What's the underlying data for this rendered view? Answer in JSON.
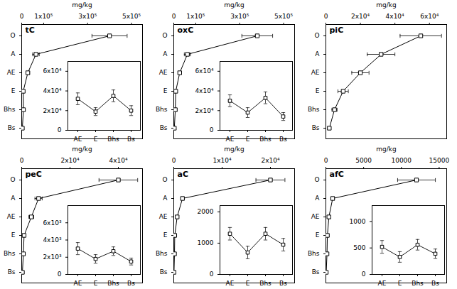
{
  "chart_data": [
    {
      "type": "line",
      "title": "tC",
      "xlabel": "mg/kg",
      "orientation": "horizontal",
      "color": "black",
      "marker": "square",
      "categories": [
        "O",
        "A",
        "AE",
        "E",
        "Bhs",
        "Bs"
      ],
      "values": [
        400000,
        65000,
        28000,
        7000,
        8000,
        3000
      ],
      "errors": [
        80000,
        15000,
        8000,
        2000,
        2000,
        1000
      ],
      "xlim": [
        0,
        550000
      ],
      "xticks": [
        0,
        {
          "value": 100000,
          "label": "1x10⁵"
        },
        {
          "value": 300000,
          "label": "3x10⁵"
        },
        {
          "value": 500000,
          "label": "5x10⁵"
        }
      ],
      "inset": {
        "type": "line",
        "color": "black",
        "marker": "square",
        "categories": [
          "AE",
          "E",
          "Bhs",
          "Bs"
        ],
        "values": [
          32000,
          19000,
          35000,
          20000
        ],
        "errors": [
          6000,
          4000,
          6000,
          5000
        ],
        "ylim": [
          0,
          70000
        ],
        "yticks": [
          0,
          {
            "value": 20000,
            "label": "2x10⁴"
          },
          {
            "value": 40000,
            "label": "4x10⁴"
          },
          {
            "value": 60000,
            "label": "6x10⁴"
          }
        ]
      }
    },
    {
      "type": "line",
      "title": "oxC",
      "xlabel": "mg/kg",
      "orientation": "horizontal",
      "color": "black",
      "marker": "square",
      "categories": [
        "O",
        "A",
        "AE",
        "E",
        "Bhs",
        "Bs"
      ],
      "values": [
        380000,
        62000,
        27000,
        9000,
        7000,
        2500
      ],
      "errors": [
        70000,
        14000,
        7000,
        3000,
        2000,
        800
      ],
      "xlim": [
        0,
        550000
      ],
      "xticks": [
        0,
        {
          "value": 100000,
          "label": "1x10⁵"
        },
        {
          "value": 300000,
          "label": "3x10⁵"
        },
        {
          "value": 500000,
          "label": "5x10⁵"
        }
      ],
      "inset": {
        "type": "line",
        "color": "black",
        "marker": "square",
        "categories": [
          "AE",
          "E",
          "Bhs",
          "Bs"
        ],
        "values": [
          30000,
          18000,
          33000,
          14000
        ],
        "errors": [
          6000,
          5000,
          6000,
          4000
        ],
        "ylim": [
          0,
          70000
        ],
        "yticks": [
          0,
          {
            "value": 20000,
            "label": "2x10⁴"
          },
          {
            "value": 40000,
            "label": "4x10⁴"
          },
          {
            "value": 60000,
            "label": "6x10⁴"
          }
        ]
      }
    },
    {
      "type": "line",
      "title": "piC",
      "xlabel": "mg/kg",
      "orientation": "horizontal",
      "color": "black",
      "marker": "square",
      "categories": [
        "O",
        "A",
        "AE",
        "E",
        "Bhs",
        "Bs"
      ],
      "values": [
        55000,
        32000,
        20000,
        10000,
        5000,
        2000
      ],
      "errors": [
        12000,
        8000,
        5000,
        3000,
        1500,
        800
      ],
      "xlim": [
        0,
        70000
      ],
      "xticks": [
        0,
        {
          "value": 20000,
          "label": "2x10⁴"
        },
        {
          "value": 40000,
          "label": "4x10⁴"
        },
        {
          "value": 60000,
          "label": "6x10⁴"
        }
      ]
    },
    {
      "type": "line",
      "title": "peC",
      "xlabel": "mg/kg",
      "orientation": "horizontal",
      "color": "black",
      "marker": "square",
      "categories": [
        "O",
        "A",
        "AE",
        "E",
        "Bhs",
        "Bs"
      ],
      "values": [
        40000,
        7000,
        4000,
        1000,
        700,
        300
      ],
      "errors": [
        8000,
        1500,
        1000,
        300,
        200,
        100
      ],
      "xlim": [
        0,
        50000
      ],
      "xticks": [
        0,
        {
          "value": 20000,
          "label": "2x10⁴"
        },
        {
          "value": 40000,
          "label": "4x10⁴"
        }
      ],
      "inset": {
        "type": "line",
        "color": "black",
        "marker": "square",
        "categories": [
          "AE",
          "E",
          "Bhs",
          "Bs"
        ],
        "values": [
          3000,
          1800,
          2700,
          1500
        ],
        "errors": [
          700,
          500,
          500,
          400
        ],
        "ylim": [
          0,
          8000
        ],
        "yticks": [
          0,
          {
            "value": 2000,
            "label": "2x10³"
          },
          {
            "value": 4000,
            "label": "4x10³"
          },
          {
            "value": 6000,
            "label": "6x10³"
          }
        ]
      }
    },
    {
      "type": "line",
      "title": "aC",
      "xlabel": "mg/kg",
      "orientation": "horizontal",
      "color": "black",
      "marker": "square",
      "categories": [
        "O",
        "A",
        "AE",
        "E",
        "Bhs",
        "Bs"
      ],
      "values": [
        20000,
        1800,
        700,
        200,
        150,
        50
      ],
      "errors": [
        3000,
        300,
        150,
        50,
        40,
        20
      ],
      "xlim": [
        0,
        25000
      ],
      "xticks": [
        0,
        {
          "value": 10000,
          "label": "1x10⁴"
        },
        {
          "value": 20000,
          "label": "2x10⁴"
        }
      ],
      "inset": {
        "type": "line",
        "color": "black",
        "marker": "square",
        "categories": [
          "AE",
          "E",
          "Bhs",
          "Bs"
        ],
        "values": [
          1300,
          700,
          1300,
          950
        ],
        "errors": [
          200,
          200,
          200,
          200
        ],
        "ylim": [
          0,
          2200
        ],
        "yticks": [
          0,
          1000,
          2000
        ]
      }
    },
    {
      "type": "line",
      "title": "afC",
      "xlabel": "mg/kg",
      "orientation": "horizontal",
      "color": "black",
      "marker": "square",
      "categories": [
        "O",
        "A",
        "AE",
        "E",
        "Bhs",
        "Bs"
      ],
      "values": [
        12000,
        900,
        400,
        200,
        150,
        50
      ],
      "errors": [
        2500,
        200,
        80,
        40,
        30,
        15
      ],
      "xlim": [
        0,
        16000
      ],
      "xticks": [
        0,
        5000,
        10000,
        15000
      ],
      "inset": {
        "type": "line",
        "color": "black",
        "marker": "square",
        "categories": [
          "AE",
          "E",
          "Bhs",
          "Bs"
        ],
        "values": [
          520,
          330,
          560,
          390
        ],
        "errors": [
          120,
          100,
          100,
          90
        ],
        "ylim": [
          0,
          1300
        ],
        "yticks": [
          0,
          500,
          1000
        ]
      }
    }
  ]
}
